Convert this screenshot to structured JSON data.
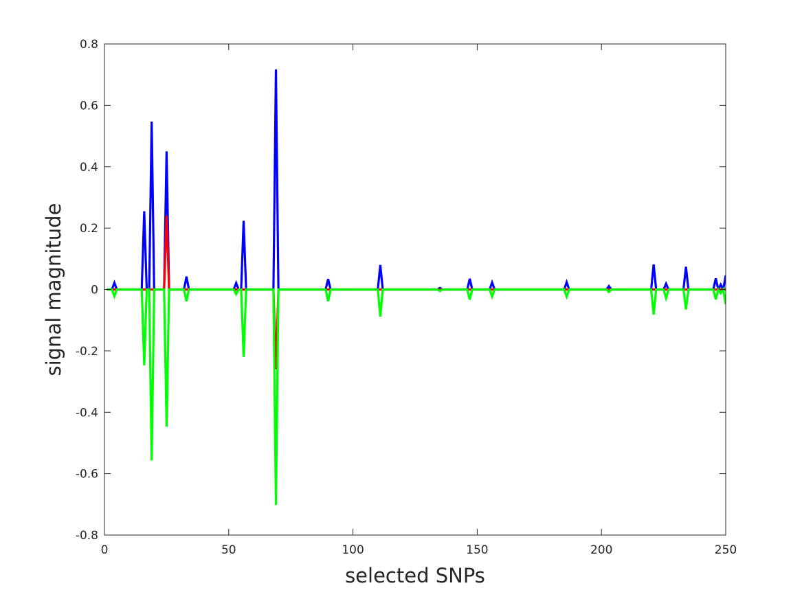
{
  "chart_data": {
    "type": "line",
    "xlabel": "selected SNPs",
    "ylabel": "signal magnitude",
    "xlim": [
      0,
      250
    ],
    "ylim": [
      -0.8,
      0.8
    ],
    "xticks": [
      0,
      50,
      100,
      150,
      200,
      250
    ],
    "yticks": [
      -0.8,
      -0.6,
      -0.4,
      -0.2,
      0,
      0.2,
      0.4,
      0.6,
      0.8
    ],
    "xtick_labels": [
      "0",
      "50",
      "100",
      "150",
      "200",
      "250"
    ],
    "ytick_labels": [
      "-0.8",
      "-0.6",
      "-0.4",
      "-0.2",
      "0",
      "0.2",
      "0.4",
      "0.6",
      "0.8"
    ],
    "grid": false,
    "legend": "none",
    "x_range": [
      1,
      250
    ],
    "series": [
      {
        "color": "#0000ff",
        "baseline": 0,
        "spikes": [
          [
            4,
            0.022
          ],
          [
            16,
            0.255
          ],
          [
            19,
            0.547
          ],
          [
            25,
            0.45
          ],
          [
            33,
            0.042
          ],
          [
            53,
            0.021
          ],
          [
            56,
            0.224
          ],
          [
            69,
            0.717
          ],
          [
            90,
            0.034
          ],
          [
            111,
            0.08
          ],
          [
            135,
            0.005
          ],
          [
            147,
            0.035
          ],
          [
            156,
            0.023
          ],
          [
            186,
            0.024
          ],
          [
            203,
            0.011
          ],
          [
            221,
            0.082
          ],
          [
            226,
            0.019
          ],
          [
            234,
            0.074
          ],
          [
            246,
            0.036
          ],
          [
            248,
            0.016
          ],
          [
            250,
            0.046
          ]
        ]
      },
      {
        "color": "#ff0000",
        "baseline": 0,
        "spikes": [
          [
            25,
            0.24
          ],
          [
            69,
            -0.26
          ]
        ]
      },
      {
        "color": "#00ff00",
        "baseline": 0,
        "spikes": [
          [
            4,
            -0.022
          ],
          [
            16,
            -0.247
          ],
          [
            19,
            -0.557
          ],
          [
            25,
            -0.447
          ],
          [
            33,
            -0.038
          ],
          [
            53,
            -0.015
          ],
          [
            56,
            -0.22
          ],
          [
            69,
            -0.702
          ],
          [
            90,
            -0.038
          ],
          [
            111,
            -0.088
          ],
          [
            135,
            -0.005
          ],
          [
            147,
            -0.033
          ],
          [
            156,
            -0.023
          ],
          [
            186,
            -0.023
          ],
          [
            203,
            -0.008
          ],
          [
            221,
            -0.082
          ],
          [
            226,
            -0.028
          ],
          [
            234,
            -0.065
          ],
          [
            246,
            -0.032
          ],
          [
            248,
            -0.012
          ],
          [
            250,
            -0.048
          ]
        ]
      }
    ]
  }
}
